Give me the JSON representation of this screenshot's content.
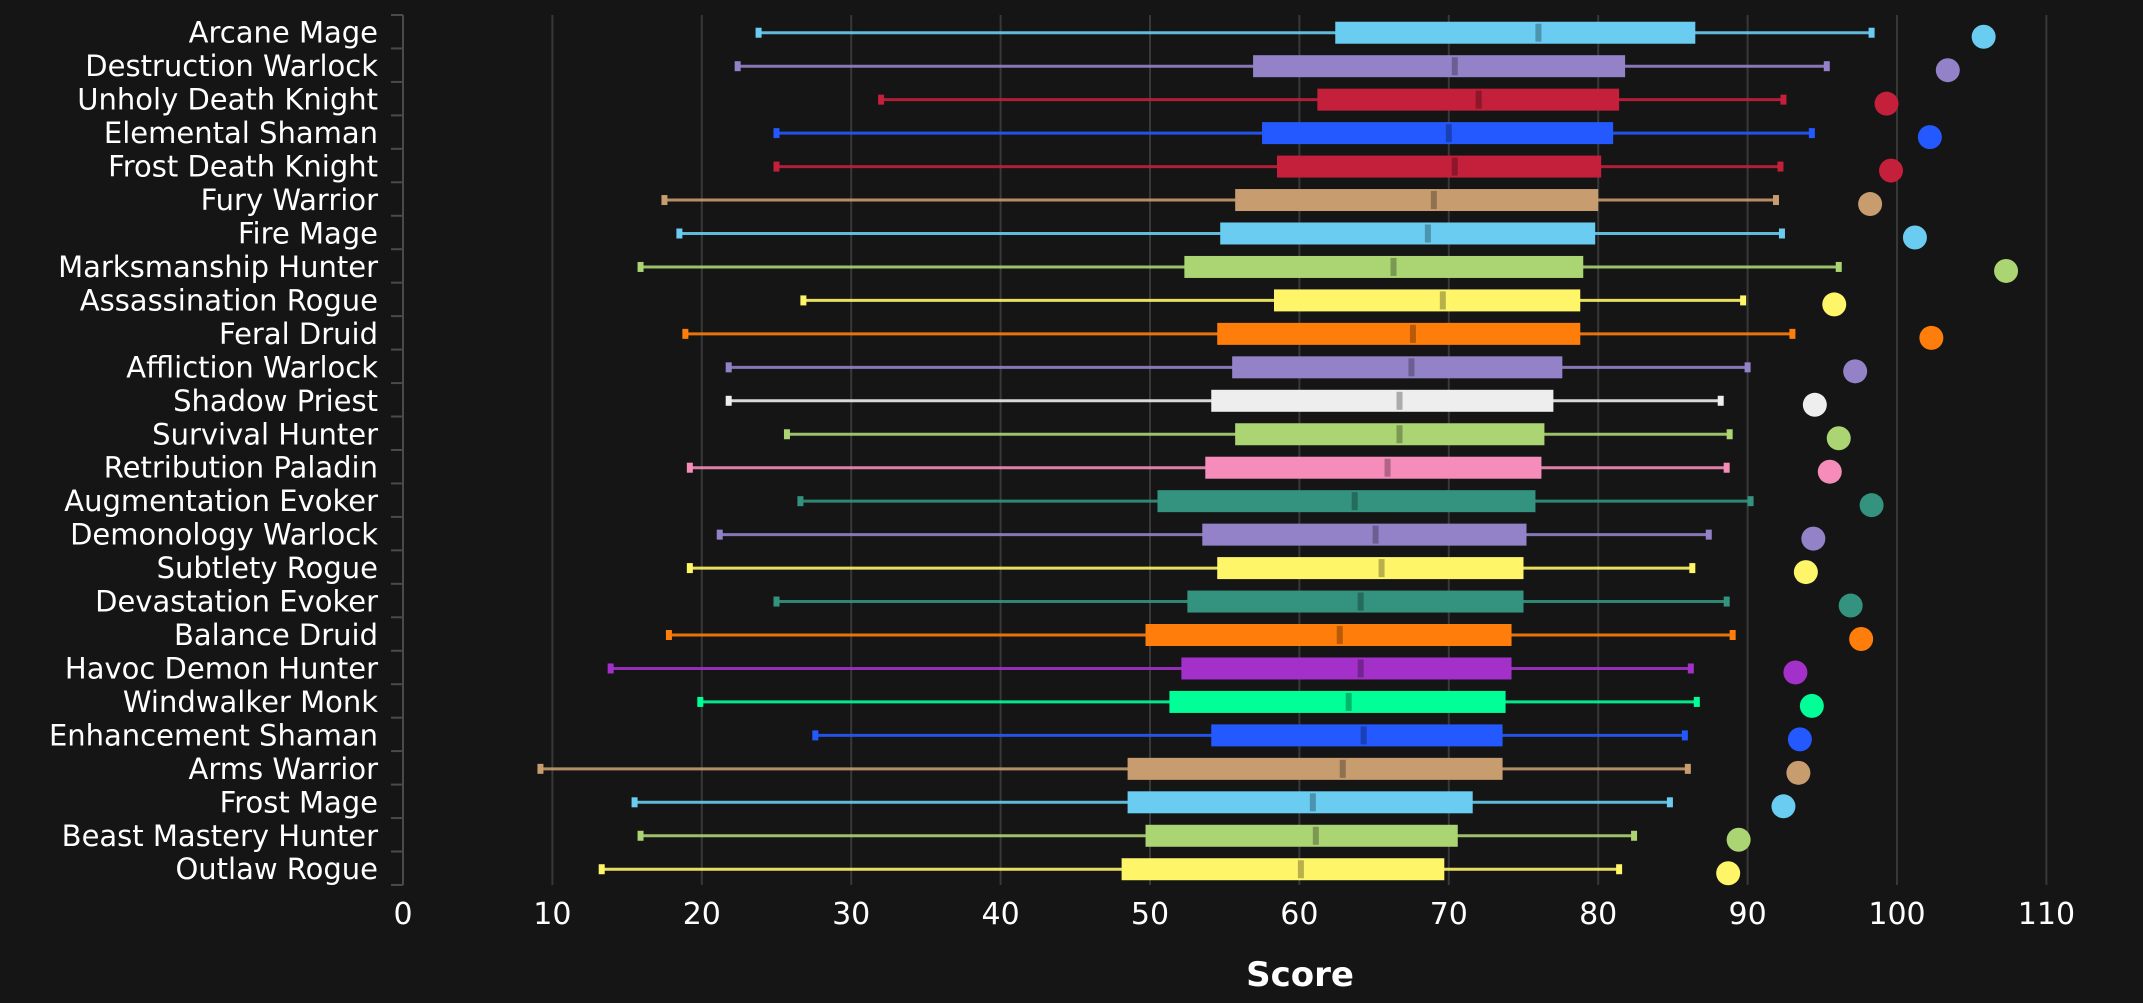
{
  "chart_data": {
    "type": "boxplot",
    "title": "",
    "xlabel": "Score",
    "ylabel": "",
    "xlim": [
      0,
      113
    ],
    "x_ticks": [
      0,
      10,
      20,
      30,
      40,
      50,
      60,
      70,
      80,
      90,
      100,
      110
    ],
    "grid": true,
    "legend": "none",
    "series_fields": [
      "min",
      "q1",
      "median",
      "q3",
      "max",
      "top"
    ],
    "categories": [
      {
        "name": "Arcane Mage",
        "color": "#69CCF0",
        "min": 23.8,
        "q1": 62.4,
        "median": 76.0,
        "q3": 86.5,
        "max": 98.3,
        "top": 105.8
      },
      {
        "name": "Destruction Warlock",
        "color": "#9482C9",
        "min": 22.4,
        "q1": 56.9,
        "median": 70.4,
        "q3": 81.8,
        "max": 95.3,
        "top": 103.4
      },
      {
        "name": "Unholy Death Knight",
        "color": "#C41F3B",
        "min": 32.0,
        "q1": 61.2,
        "median": 72.0,
        "q3": 81.4,
        "max": 92.4,
        "top": 99.3
      },
      {
        "name": "Elemental Shaman",
        "color": "#2459FF",
        "min": 25.0,
        "q1": 57.5,
        "median": 70.0,
        "q3": 81.0,
        "max": 94.3,
        "top": 102.2
      },
      {
        "name": "Frost Death Knight",
        "color": "#C41F3B",
        "min": 25.0,
        "q1": 58.5,
        "median": 70.4,
        "q3": 80.2,
        "max": 92.2,
        "top": 99.6
      },
      {
        "name": "Fury Warrior",
        "color": "#C79C6E",
        "min": 17.5,
        "q1": 55.7,
        "median": 69.0,
        "q3": 80.0,
        "max": 91.9,
        "top": 98.2
      },
      {
        "name": "Fire Mage",
        "color": "#69CCF0",
        "min": 18.5,
        "q1": 54.7,
        "median": 68.6,
        "q3": 79.8,
        "max": 92.3,
        "top": 101.2
      },
      {
        "name": "Marksmanship Hunter",
        "color": "#ABD473",
        "min": 15.9,
        "q1": 52.3,
        "median": 66.3,
        "q3": 79.0,
        "max": 96.1,
        "top": 107.3
      },
      {
        "name": "Assassination Rogue",
        "color": "#FFF569",
        "min": 26.8,
        "q1": 58.3,
        "median": 69.6,
        "q3": 78.8,
        "max": 89.7,
        "top": 95.8
      },
      {
        "name": "Feral Druid",
        "color": "#FF7D0A",
        "min": 18.9,
        "q1": 54.5,
        "median": 67.6,
        "q3": 78.8,
        "max": 93.0,
        "top": 102.3
      },
      {
        "name": "Affliction Warlock",
        "color": "#9482C9",
        "min": 21.8,
        "q1": 55.5,
        "median": 67.5,
        "q3": 77.6,
        "max": 90.0,
        "top": 97.2
      },
      {
        "name": "Shadow Priest",
        "color": "#EEEEEE",
        "min": 21.8,
        "q1": 54.1,
        "median": 66.7,
        "q3": 77.0,
        "max": 88.2,
        "top": 94.5
      },
      {
        "name": "Survival Hunter",
        "color": "#ABD473",
        "min": 25.7,
        "q1": 55.7,
        "median": 66.7,
        "q3": 76.4,
        "max": 88.8,
        "top": 96.1
      },
      {
        "name": "Retribution Paladin",
        "color": "#F58CBA",
        "min": 19.2,
        "q1": 53.7,
        "median": 65.9,
        "q3": 76.2,
        "max": 88.6,
        "top": 95.5
      },
      {
        "name": "Augmentation Evoker",
        "color": "#33937F",
        "min": 26.6,
        "q1": 50.5,
        "median": 63.7,
        "q3": 75.8,
        "max": 90.2,
        "top": 98.3
      },
      {
        "name": "Demonology Warlock",
        "color": "#9482C9",
        "min": 21.2,
        "q1": 53.5,
        "median": 65.1,
        "q3": 75.2,
        "max": 87.4,
        "top": 94.4
      },
      {
        "name": "Subtlety Rogue",
        "color": "#FFF569",
        "min": 19.2,
        "q1": 54.5,
        "median": 65.5,
        "q3": 75.0,
        "max": 86.3,
        "top": 93.9
      },
      {
        "name": "Devastation Evoker",
        "color": "#33937F",
        "min": 25.0,
        "q1": 52.5,
        "median": 64.1,
        "q3": 75.0,
        "max": 88.6,
        "top": 96.9
      },
      {
        "name": "Balance Druid",
        "color": "#FF7D0A",
        "min": 17.8,
        "q1": 49.7,
        "median": 62.7,
        "q3": 74.2,
        "max": 89.0,
        "top": 97.6
      },
      {
        "name": "Havoc Demon Hunter",
        "color": "#A330C9",
        "min": 13.9,
        "q1": 52.1,
        "median": 64.1,
        "q3": 74.2,
        "max": 86.2,
        "top": 93.2
      },
      {
        "name": "Windwalker Monk",
        "color": "#00FF96",
        "min": 19.9,
        "q1": 51.3,
        "median": 63.3,
        "q3": 73.8,
        "max": 86.6,
        "top": 94.3
      },
      {
        "name": "Enhancement Shaman",
        "color": "#2459FF",
        "min": 27.6,
        "q1": 54.1,
        "median": 64.3,
        "q3": 73.6,
        "max": 85.8,
        "top": 93.5
      },
      {
        "name": "Arms Warrior",
        "color": "#C79C6E",
        "min": 9.2,
        "q1": 48.5,
        "median": 62.9,
        "q3": 73.6,
        "max": 86.0,
        "top": 93.4
      },
      {
        "name": "Frost Mage",
        "color": "#69CCF0",
        "min": 15.5,
        "q1": 48.5,
        "median": 60.9,
        "q3": 71.6,
        "max": 84.8,
        "top": 92.4
      },
      {
        "name": "Beast Mastery Hunter",
        "color": "#ABD473",
        "min": 15.9,
        "q1": 49.7,
        "median": 61.1,
        "q3": 70.6,
        "max": 82.4,
        "top": 89.4
      },
      {
        "name": "Outlaw Rogue",
        "color": "#FFF569",
        "min": 13.3,
        "q1": 48.1,
        "median": 60.1,
        "q3": 69.7,
        "max": 81.4,
        "top": 88.7
      }
    ]
  },
  "theme": {
    "background": "#151515",
    "grid_color": "#383838",
    "axis_color": "#4a4a4a",
    "text_color": "#ffffff"
  }
}
